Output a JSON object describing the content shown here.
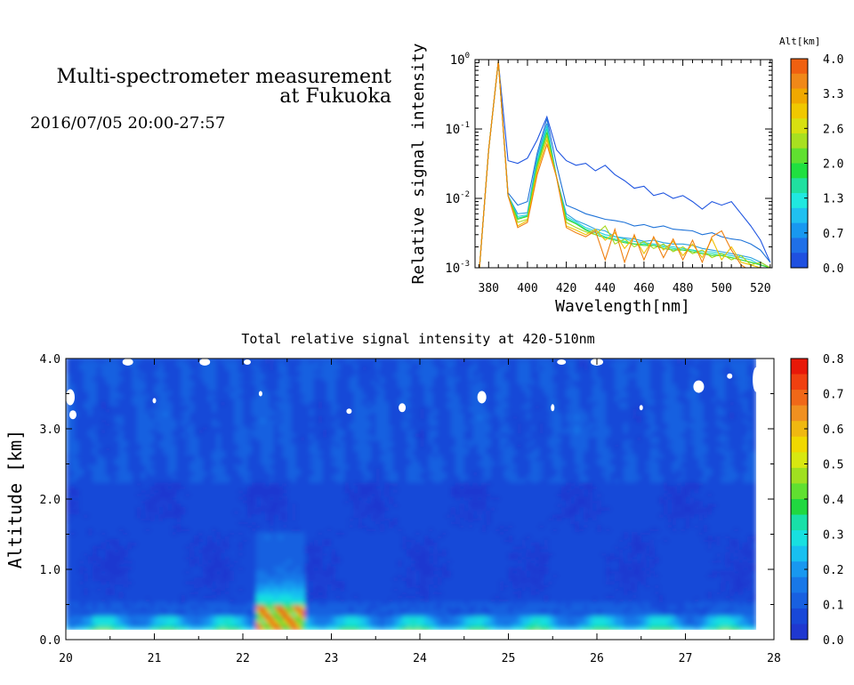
{
  "header": {
    "title_line1": "Multi-spectrometer measurement",
    "title_line2": "at Fukuoka",
    "subtitle": "2016/07/05 20:00-27:57"
  },
  "chart_data": [
    {
      "type": "line",
      "xlabel": "Wavelength[nm]",
      "ylabel": "Relative signal intensity",
      "yscale": "log",
      "xlim": [
        373,
        526
      ],
      "ylim": [
        0.001,
        1
      ],
      "xticks": [
        380,
        400,
        420,
        440,
        460,
        480,
        500,
        520
      ],
      "yticks": [
        {
          "v": 0.001,
          "b": "10",
          "e": "-3"
        },
        {
          "v": 0.01,
          "b": "10",
          "e": "-2"
        },
        {
          "v": 0.1,
          "b": "10",
          "e": "-1"
        },
        {
          "v": 1,
          "b": "10",
          "e": "0"
        }
      ],
      "x": [
        375,
        380,
        385,
        390,
        395,
        400,
        405,
        410,
        415,
        420,
        425,
        430,
        435,
        440,
        445,
        450,
        455,
        460,
        465,
        470,
        475,
        480,
        485,
        490,
        495,
        500,
        505,
        510,
        515,
        520,
        525
      ],
      "series": [
        {
          "alt": 0.0,
          "color": "#1f55e0",
          "values": [
            0.0008,
            0.05,
            0.95,
            0.035,
            0.032,
            0.038,
            0.07,
            0.15,
            0.05,
            0.035,
            0.03,
            0.032,
            0.025,
            0.03,
            0.022,
            0.018,
            0.014,
            0.015,
            0.011,
            0.012,
            0.01,
            0.011,
            0.009,
            0.007,
            0.009,
            0.008,
            0.009,
            0.006,
            0.004,
            0.0025,
            0.0012
          ]
        },
        {
          "alt": 0.3,
          "color": "#1f73d8",
          "values": [
            0.0008,
            0.05,
            0.95,
            0.012,
            0.008,
            0.009,
            0.045,
            0.14,
            0.03,
            0.008,
            0.007,
            0.006,
            0.0055,
            0.005,
            0.0048,
            0.0045,
            0.004,
            0.0042,
            0.0038,
            0.004,
            0.0036,
            0.0035,
            0.0034,
            0.003,
            0.0032,
            0.0028,
            0.0026,
            0.0025,
            0.0022,
            0.0018,
            0.0012
          ]
        },
        {
          "alt": 0.7,
          "color": "#2aa0e0",
          "values": [
            0.0008,
            0.05,
            0.95,
            0.011,
            0.006,
            0.0062,
            0.04,
            0.12,
            0.02,
            0.006,
            0.0048,
            0.0042,
            0.0036,
            0.0034,
            0.0028,
            0.0027,
            0.0026,
            0.0024,
            0.0025,
            0.0023,
            0.0022,
            0.0022,
            0.0021,
            0.0019,
            0.0018,
            0.0017,
            0.0016,
            0.0015,
            0.0014,
            0.0012,
            0.001
          ]
        },
        {
          "alt": 1.0,
          "color": "#22d0e0",
          "values": [
            0.0008,
            0.05,
            0.95,
            0.011,
            0.0055,
            0.0058,
            0.035,
            0.11,
            0.02,
            0.0055,
            0.0046,
            0.0038,
            0.0034,
            0.003,
            0.0028,
            0.0026,
            0.0024,
            0.0023,
            0.0022,
            0.0021,
            0.002,
            0.0019,
            0.0018,
            0.0017,
            0.0017,
            0.0016,
            0.0015,
            0.0014,
            0.0013,
            0.0011,
            0.001
          ]
        },
        {
          "alt": 1.3,
          "color": "#1fe0a8",
          "values": [
            0.0008,
            0.05,
            0.95,
            0.011,
            0.0052,
            0.0056,
            0.033,
            0.1,
            0.02,
            0.0052,
            0.0044,
            0.0036,
            0.0032,
            0.0028,
            0.0026,
            0.0024,
            0.0022,
            0.0022,
            0.0021,
            0.002,
            0.0019,
            0.0018,
            0.0018,
            0.0016,
            0.0016,
            0.0015,
            0.0014,
            0.0013,
            0.0012,
            0.0011,
            0.001
          ]
        },
        {
          "alt": 2.0,
          "color": "#3ad83a",
          "values": [
            0.0008,
            0.05,
            0.95,
            0.011,
            0.005,
            0.0055,
            0.03,
            0.09,
            0.02,
            0.005,
            0.0043,
            0.0035,
            0.003,
            0.0027,
            0.0025,
            0.0023,
            0.0022,
            0.0021,
            0.0021,
            0.0019,
            0.0018,
            0.0018,
            0.0017,
            0.0016,
            0.0015,
            0.0015,
            0.0014,
            0.0013,
            0.0012,
            0.0011,
            0.001
          ]
        },
        {
          "alt": 2.6,
          "color": "#a8d81a",
          "values": [
            0.0008,
            0.05,
            0.95,
            0.011,
            0.0045,
            0.005,
            0.028,
            0.08,
            0.02,
            0.0045,
            0.0038,
            0.0033,
            0.003,
            0.004,
            0.0022,
            0.0026,
            0.002,
            0.0024,
            0.0019,
            0.0022,
            0.0017,
            0.002,
            0.0016,
            0.0018,
            0.0014,
            0.0016,
            0.0013,
            0.0015,
            0.0011,
            0.0012,
            0.001
          ]
        },
        {
          "alt": 3.3,
          "color": "#f0c000",
          "values": [
            0.0008,
            0.05,
            0.95,
            0.011,
            0.004,
            0.0048,
            0.025,
            0.07,
            0.02,
            0.004,
            0.0035,
            0.003,
            0.0036,
            0.0025,
            0.0032,
            0.0019,
            0.0028,
            0.0016,
            0.0027,
            0.0018,
            0.0024,
            0.0015,
            0.0022,
            0.0014,
            0.0026,
            0.0013,
            0.002,
            0.0012,
            0.0011,
            0.001,
            0.0009
          ]
        },
        {
          "alt": 4.0,
          "color": "#f08010",
          "values": [
            0.0008,
            0.05,
            0.95,
            0.011,
            0.0038,
            0.0045,
            0.022,
            0.06,
            0.02,
            0.0038,
            0.0032,
            0.0028,
            0.0034,
            0.0013,
            0.0036,
            0.0012,
            0.003,
            0.0013,
            0.0028,
            0.0014,
            0.0026,
            0.0013,
            0.0025,
            0.0012,
            0.0028,
            0.0034,
            0.0018,
            0.0011,
            0.0009,
            0.001,
            0.0009
          ]
        }
      ],
      "colorbar": {
        "title": "Alt[km]",
        "labels": [
          "4.0",
          "3.3",
          "2.6",
          "2.0",
          "1.3",
          "0.7",
          "0.0"
        ],
        "colors": [
          "#f06010",
          "#f08818",
          "#f0a800",
          "#f0c800",
          "#d8e010",
          "#a8e020",
          "#60e030",
          "#20e040",
          "#20e0a0",
          "#20e8e0",
          "#20c0f0",
          "#1898f0",
          "#1f70e8",
          "#1f50e0"
        ]
      }
    },
    {
      "type": "heatmap",
      "title": "Total relative signal intensity at 420-510nm",
      "ylabel": "Altitude [km]",
      "xlim": [
        20,
        28
      ],
      "ylim": [
        0.0,
        4.0
      ],
      "xticks": [
        "20",
        "21",
        "22",
        "23",
        "24",
        "25",
        "26",
        "27",
        "28"
      ],
      "yticks": [
        "0.0",
        "1.0",
        "2.0",
        "3.0",
        "4.0"
      ],
      "data_xrange": [
        20,
        27.8
      ],
      "data_yrange": [
        0.14,
        4.0
      ],
      "zlim": [
        0.0,
        0.8
      ],
      "features": [
        {
          "name": "aerosol-plume",
          "x": [
            22.15,
            22.7
          ],
          "y": [
            0.14,
            1.5
          ]
        },
        {
          "name": "boundary-layer",
          "x": [
            20,
            27.8
          ],
          "y": [
            0.14,
            0.3
          ]
        }
      ],
      "colorbar": {
        "labels": [
          "0.8",
          "0.7",
          "0.6",
          "0.5",
          "0.4",
          "0.3",
          "0.2",
          "0.1",
          "0.0"
        ],
        "colors": [
          "#e81808",
          "#f04010",
          "#f06818",
          "#f09020",
          "#f0b810",
          "#f0d800",
          "#d8e810",
          "#a0e020",
          "#60e030",
          "#20d840",
          "#18e0a8",
          "#18e0e0",
          "#18c0f0",
          "#1898f0",
          "#1878e8",
          "#1860e0",
          "#1848d8",
          "#1f38d0"
        ]
      }
    }
  ]
}
